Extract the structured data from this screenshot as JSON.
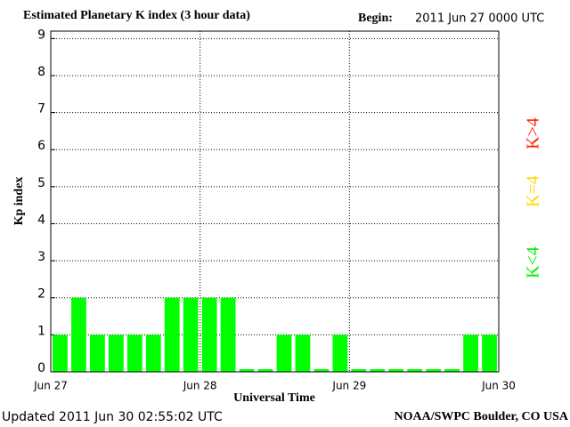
{
  "chart_data": {
    "type": "bar",
    "title": "Estimated Planetary K index (3 hour data)",
    "begin_label": "Begin:",
    "begin": "2011 Jun 27 0000 UTC",
    "y_label": "Kp index",
    "x_label": "Universal Time",
    "updated": "Updated 2011 Jun 30 02:55:02 UTC",
    "source": "NOAA/SWPC Boulder, CO USA",
    "categories": [
      null,
      null,
      null,
      null,
      null,
      null,
      null,
      null,
      null,
      null,
      null,
      null,
      null,
      null,
      null,
      null,
      null,
      null,
      null,
      null,
      null,
      null,
      null,
      null
    ],
    "values": [
      1,
      2,
      1,
      1,
      1,
      1,
      2,
      2,
      2,
      2,
      0,
      0,
      1,
      1,
      0,
      1,
      0,
      0,
      0,
      0,
      0,
      0,
      1,
      1
    ],
    "color": "#00ff00",
    "day_labels": [
      "Jun 27",
      "Jun 28",
      "Jun 29",
      "Jun 30"
    ],
    "ylim": [
      0,
      9.2
    ],
    "yticks": [
      0,
      1,
      2,
      3,
      4,
      5,
      6,
      7,
      8,
      9
    ],
    "grid": true,
    "legend": [
      {
        "name": "K<4",
        "color": "#00ee00"
      },
      {
        "name": "K=4",
        "color": "#ffd700"
      },
      {
        "name": "K>4",
        "color": "#ff2200"
      }
    ]
  }
}
